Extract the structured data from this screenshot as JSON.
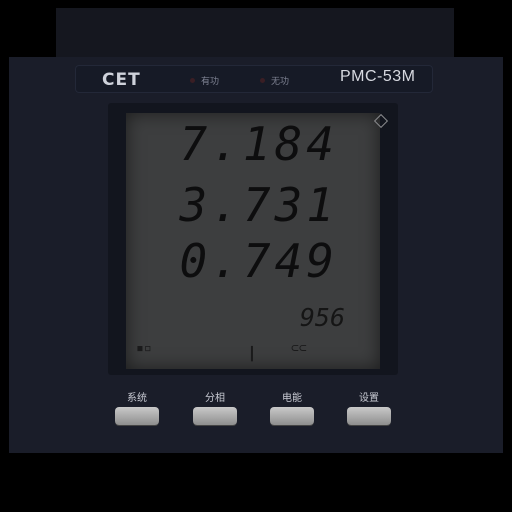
{
  "device": {
    "brand": "CET",
    "model": "PMC-53M",
    "indicators": [
      {
        "label": "有功",
        "color": "#3a1e24"
      },
      {
        "label": "无功",
        "color": "#3a1e24"
      }
    ]
  },
  "display": {
    "readings": [
      "7.184",
      "3.731",
      "0.749"
    ],
    "secondary": "956"
  },
  "buttons": [
    {
      "label": "系统"
    },
    {
      "label": "分相"
    },
    {
      "label": "电能"
    },
    {
      "label": "设置"
    }
  ]
}
